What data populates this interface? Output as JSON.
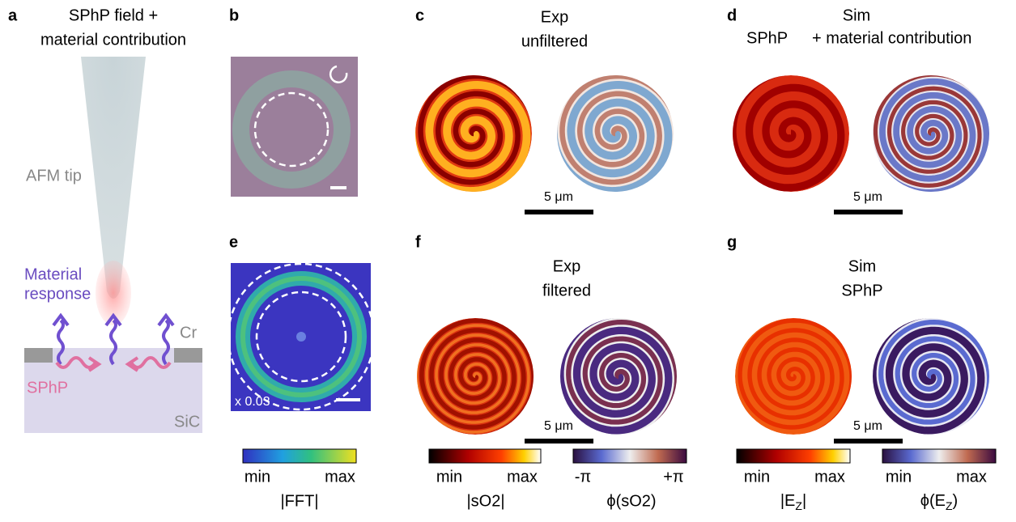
{
  "panels": {
    "a": {
      "label": "a",
      "title": [
        "SPhP field +",
        "material contribution"
      ],
      "tip": "AFM tip",
      "response": [
        "Material",
        "response"
      ],
      "cr": "Cr",
      "sphp": "SPhP",
      "sic": "SiC"
    },
    "b": {
      "label": "b"
    },
    "c": {
      "label": "c",
      "title": [
        "Exp",
        "unfiltered"
      ],
      "scale": "5 μm"
    },
    "d": {
      "label": "d",
      "title": "Sim",
      "subtitle": [
        "SPhP",
        "+ material contribution"
      ],
      "scale": "5 μm"
    },
    "e": {
      "label": "e",
      "factor": "x 0.03",
      "colorbar": {
        "min": "min",
        "max": "max",
        "name": "|FFT|"
      }
    },
    "f": {
      "label": "f",
      "title": [
        "Exp",
        "filtered"
      ],
      "scale": "5 μm",
      "colorbars": [
        {
          "min": "min",
          "max": "max",
          "name": "|sO2|"
        },
        {
          "min": "-π",
          "max": "+π",
          "name": "ϕ(sO2)"
        }
      ]
    },
    "g": {
      "label": "g",
      "title": [
        "Sim",
        "SPhP"
      ],
      "scale": "5 μm",
      "colorbars": [
        {
          "min": "min",
          "max": "max",
          "name": {
            "main": "|E",
            "sub": "Z",
            "end": "|"
          }
        },
        {
          "min": "min",
          "max": "max",
          "name": {
            "main": "ϕ(E",
            "sub": "Z",
            "end": ")"
          }
        }
      ]
    }
  }
}
